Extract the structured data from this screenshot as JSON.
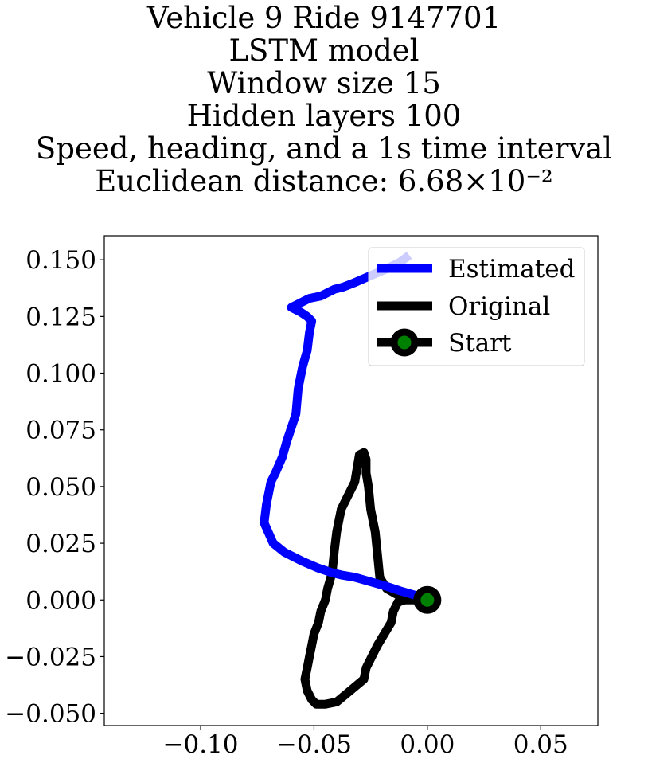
{
  "title_lines": [
    "Vehicle 9 Ride 9147701",
    "LSTM model",
    "Window size 15",
    "Hidden layers 100",
    "Speed, heading, and a 1s time interval",
    "Euclidean distance: 6.68×10⁻²"
  ],
  "chart_data": {
    "type": "line",
    "xlim": [
      -0.1425,
      0.0752
    ],
    "ylim": [
      -0.0554,
      0.1606
    ],
    "xticks": [
      {
        "value": -0.1,
        "label": "−0.10"
      },
      {
        "value": -0.05,
        "label": "−0.05"
      },
      {
        "value": 0.0,
        "label": "0.00"
      },
      {
        "value": 0.05,
        "label": "0.05"
      }
    ],
    "yticks": [
      {
        "value": 0.15,
        "label": "0.150"
      },
      {
        "value": 0.125,
        "label": "0.125"
      },
      {
        "value": 0.1,
        "label": "0.100"
      },
      {
        "value": 0.075,
        "label": "0.075"
      },
      {
        "value": 0.05,
        "label": "0.050"
      },
      {
        "value": 0.025,
        "label": "0.025"
      },
      {
        "value": 0.0,
        "label": "0.000"
      },
      {
        "value": -0.025,
        "label": "−0.025"
      },
      {
        "value": -0.05,
        "label": "−0.050"
      }
    ],
    "grid": false,
    "legend_position": "top-right",
    "series": [
      {
        "name": "Estimated",
        "color": "#0000ff",
        "x": [
          0.0,
          -0.005,
          -0.012,
          -0.018,
          -0.025,
          -0.032,
          -0.038,
          -0.042,
          -0.048,
          -0.055,
          -0.063,
          -0.068,
          -0.072,
          -0.071,
          -0.069,
          -0.067,
          -0.064,
          -0.062,
          -0.06,
          -0.058,
          -0.057,
          -0.056,
          -0.055,
          -0.053,
          -0.052,
          -0.051,
          -0.053,
          -0.056,
          -0.06,
          -0.058,
          -0.052,
          -0.047,
          -0.041,
          -0.037,
          -0.032,
          -0.025,
          -0.018,
          -0.012,
          -0.008
        ],
        "y": [
          0.0,
          0.002,
          0.004,
          0.006,
          0.008,
          0.01,
          0.011,
          0.012,
          0.014,
          0.017,
          0.021,
          0.025,
          0.034,
          0.042,
          0.052,
          0.056,
          0.063,
          0.07,
          0.076,
          0.082,
          0.093,
          0.098,
          0.103,
          0.11,
          0.118,
          0.123,
          0.125,
          0.127,
          0.129,
          0.13,
          0.133,
          0.134,
          0.137,
          0.138,
          0.14,
          0.143,
          0.146,
          0.149,
          0.152
        ]
      },
      {
        "name": "Original",
        "color": "#000000",
        "x": [
          0.0,
          -0.006,
          -0.011,
          -0.018,
          -0.021,
          -0.022,
          -0.023,
          -0.025,
          -0.026,
          -0.027,
          -0.027,
          -0.028,
          -0.03,
          -0.031,
          -0.032,
          -0.034,
          -0.036,
          -0.038,
          -0.04,
          -0.041,
          -0.042,
          -0.044,
          -0.045,
          -0.047,
          -0.048,
          -0.05,
          -0.051,
          -0.052,
          -0.053,
          -0.054,
          -0.053,
          -0.051,
          -0.049,
          -0.045,
          -0.04,
          -0.034,
          -0.028,
          -0.027,
          -0.025,
          -0.022,
          -0.019,
          -0.016,
          -0.015,
          -0.014,
          -0.013,
          -0.01,
          -0.006,
          -0.003,
          0.0
        ],
        "y": [
          0.0,
          0.0,
          0.001,
          0.005,
          0.01,
          0.02,
          0.03,
          0.04,
          0.05,
          0.056,
          0.062,
          0.065,
          0.064,
          0.058,
          0.052,
          0.048,
          0.044,
          0.04,
          0.03,
          0.022,
          0.012,
          0.005,
          0.0,
          -0.005,
          -0.01,
          -0.015,
          -0.02,
          -0.025,
          -0.03,
          -0.035,
          -0.04,
          -0.044,
          -0.046,
          -0.046,
          -0.045,
          -0.04,
          -0.035,
          -0.03,
          -0.026,
          -0.02,
          -0.015,
          -0.01,
          -0.005,
          -0.003,
          -0.001,
          0.0,
          0.0,
          0.0,
          0.0
        ]
      },
      {
        "name": "Start",
        "color": "#000000",
        "marker_face_color": "#008000",
        "x": [
          0.0
        ],
        "y": [
          0.0
        ]
      }
    ]
  }
}
